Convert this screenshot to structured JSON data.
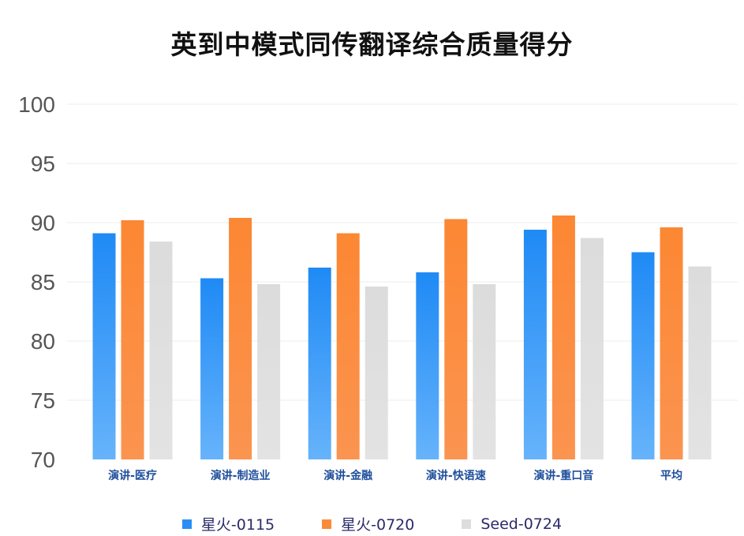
{
  "chart_data": {
    "type": "bar",
    "title": "英到中模式同传翻译综合质量得分",
    "xlabel": "",
    "ylabel": "",
    "ylim": [
      70,
      100
    ],
    "yticks": [
      "100",
      "95",
      "90",
      "85",
      "80",
      "75",
      "70"
    ],
    "ytick_values": [
      100,
      95,
      90,
      85,
      80,
      75,
      70
    ],
    "grid": true,
    "legend_position": "bottom",
    "categories": [
      "演讲-医疗",
      "演讲-制造业",
      "演讲-金融",
      "演讲-快语速",
      "演讲-重口音",
      "平均"
    ],
    "series": [
      {
        "name": "星火-0115",
        "color": "#2b8ef5",
        "values": [
          89.1,
          85.3,
          86.2,
          85.8,
          89.4,
          87.5
        ]
      },
      {
        "name": "星火-0720",
        "color": "#fb8a3a",
        "values": [
          90.2,
          90.4,
          89.1,
          90.3,
          90.6,
          89.6
        ]
      },
      {
        "name": "Seed-0724",
        "color": "#dddddd",
        "values": [
          88.4,
          84.8,
          84.6,
          84.8,
          88.7,
          86.3
        ]
      }
    ]
  }
}
